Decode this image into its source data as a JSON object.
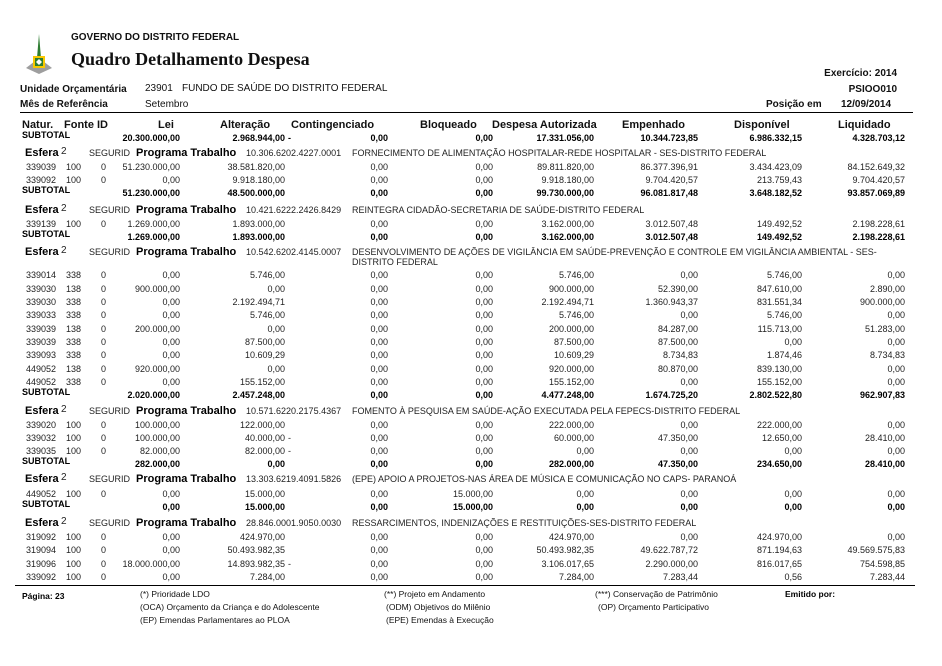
{
  "header": {
    "government": "GOVERNO DO DISTRITO FEDERAL",
    "title": "Quadro Detalhamento Despesa",
    "exercicio": "Exercício: 2014",
    "report_code": "PSIOO010",
    "unidade_label": "Unidade Orçamentária",
    "unidade_code": "23901",
    "unidade_name": "FUNDO DE SAÚDE DO DISTRITO FEDERAL",
    "mes_label": "Mês de Referência",
    "mes_value": "Setembro",
    "posicao_label": "Posição em",
    "posicao_value": "12/09/2014"
  },
  "columns": [
    "Natur.",
    "Fonte ID",
    "Lei",
    "Alteração",
    "Contingenciado",
    "Bloqueado",
    "Despesa Autorizada",
    "Empenhado",
    "Disponível",
    "Liquidado"
  ],
  "rows": [
    {
      "type": "subtotal",
      "label": "SUBTOTAL",
      "v": [
        "20.300.000,00",
        "2.968.944,00 -",
        "0,00",
        "0,00",
        "17.331.056,00",
        "10.344.723,85",
        "6.986.332,15",
        "4.328.703,12"
      ]
    },
    {
      "type": "esfera",
      "label": "Esfera",
      "esfera": "2",
      "seg": "SEGURID",
      "prog": "Programa Trabalho",
      "code": "10.306.6202.4227.0001",
      "desc": "FORNECIMENTO DE ALIMENTAÇÃO HOSPITALAR-REDE HOSPITALAR - SES-DISTRITO FEDERAL"
    },
    {
      "type": "data",
      "natur": "339039",
      "fonte": "100",
      "id": "0",
      "v": [
        "51.230.000,00",
        "38.581.820,00",
        "0,00",
        "0,00",
        "89.811.820,00",
        "86.377.396,91",
        "3.434.423,09",
        "84.152.649,32"
      ]
    },
    {
      "type": "data",
      "natur": "339092",
      "fonte": "100",
      "id": "0",
      "v": [
        "0,00",
        "9.918.180,00",
        "0,00",
        "0,00",
        "9.918.180,00",
        "9.704.420,57",
        "213.759,43",
        "9.704.420,57"
      ]
    },
    {
      "type": "subtotal",
      "label": "SUBTOTAL",
      "v": [
        "51.230.000,00",
        "48.500.000,00",
        "0,00",
        "0,00",
        "99.730.000,00",
        "96.081.817,48",
        "3.648.182,52",
        "93.857.069,89"
      ]
    },
    {
      "type": "esfera",
      "label": "Esfera",
      "esfera": "2",
      "seg": "SEGURID",
      "prog": "Programa Trabalho",
      "code": "10.421.6222.2426.8429",
      "desc": "REINTEGRA CIDADÃO-SECRETARIA DE SAÚDE-DISTRITO FEDERAL"
    },
    {
      "type": "data",
      "natur": "339139",
      "fonte": "100",
      "id": "0",
      "v": [
        "1.269.000,00",
        "1.893.000,00",
        "0,00",
        "0,00",
        "3.162.000,00",
        "3.012.507,48",
        "149.492,52",
        "2.198.228,61"
      ]
    },
    {
      "type": "subtotal",
      "label": "SUBTOTAL",
      "v": [
        "1.269.000,00",
        "1.893.000,00",
        "0,00",
        "0,00",
        "3.162.000,00",
        "3.012.507,48",
        "149.492,52",
        "2.198.228,61"
      ]
    },
    {
      "type": "esfera",
      "label": "Esfera",
      "esfera": "2",
      "seg": "SEGURID",
      "prog": "Programa Trabalho",
      "code": "10.542.6202.4145.0007",
      "desc": "DESENVOLVIMENTO DE AÇÕES DE VIGILÂNCIA EM SAÚDE-PREVENÇÃO E CONTROLE EM VIGILÂNCIA AMBIENTAL - SES-DISTRITO FEDERAL"
    },
    {
      "type": "data",
      "natur": "339014",
      "fonte": "338",
      "id": "0",
      "v": [
        "0,00",
        "5.746,00",
        "0,00",
        "0,00",
        "5.746,00",
        "0,00",
        "5.746,00",
        "0,00"
      ]
    },
    {
      "type": "data",
      "natur": "339030",
      "fonte": "138",
      "id": "0",
      "v": [
        "900.000,00",
        "0,00",
        "0,00",
        "0,00",
        "900.000,00",
        "52.390,00",
        "847.610,00",
        "2.890,00"
      ]
    },
    {
      "type": "data",
      "natur": "339030",
      "fonte": "338",
      "id": "0",
      "v": [
        "0,00",
        "2.192.494,71",
        "0,00",
        "0,00",
        "2.192.494,71",
        "1.360.943,37",
        "831.551,34",
        "900.000,00"
      ]
    },
    {
      "type": "data",
      "natur": "339033",
      "fonte": "338",
      "id": "0",
      "v": [
        "0,00",
        "5.746,00",
        "0,00",
        "0,00",
        "5.746,00",
        "0,00",
        "5.746,00",
        "0,00"
      ]
    },
    {
      "type": "data",
      "natur": "339039",
      "fonte": "138",
      "id": "0",
      "v": [
        "200.000,00",
        "0,00",
        "0,00",
        "0,00",
        "200.000,00",
        "84.287,00",
        "115.713,00",
        "51.283,00"
      ]
    },
    {
      "type": "data",
      "natur": "339039",
      "fonte": "338",
      "id": "0",
      "v": [
        "0,00",
        "87.500,00",
        "0,00",
        "0,00",
        "87.500,00",
        "87.500,00",
        "0,00",
        "0,00"
      ]
    },
    {
      "type": "data",
      "natur": "339093",
      "fonte": "338",
      "id": "0",
      "v": [
        "0,00",
        "10.609,29",
        "0,00",
        "0,00",
        "10.609,29",
        "8.734,83",
        "1.874,46",
        "8.734,83"
      ]
    },
    {
      "type": "data",
      "natur": "449052",
      "fonte": "138",
      "id": "0",
      "v": [
        "920.000,00",
        "0,00",
        "0,00",
        "0,00",
        "920.000,00",
        "80.870,00",
        "839.130,00",
        "0,00"
      ]
    },
    {
      "type": "data",
      "natur": "449052",
      "fonte": "338",
      "id": "0",
      "v": [
        "0,00",
        "155.152,00",
        "0,00",
        "0,00",
        "155.152,00",
        "0,00",
        "155.152,00",
        "0,00"
      ]
    },
    {
      "type": "subtotal",
      "label": "SUBTOTAL",
      "v": [
        "2.020.000,00",
        "2.457.248,00",
        "0,00",
        "0,00",
        "4.477.248,00",
        "1.674.725,20",
        "2.802.522,80",
        "962.907,83"
      ]
    },
    {
      "type": "esfera",
      "label": "Esfera",
      "esfera": "2",
      "seg": "SEGURID",
      "prog": "Programa Trabalho",
      "code": "10.571.6220.2175.4367",
      "desc": "FOMENTO À PESQUISA EM SAÚDE-AÇÃO EXECUTADA PELA FEPECS-DISTRITO FEDERAL"
    },
    {
      "type": "data",
      "natur": "339020",
      "fonte": "100",
      "id": "0",
      "v": [
        "100.000,00",
        "122.000,00",
        "0,00",
        "0,00",
        "222.000,00",
        "0,00",
        "222.000,00",
        "0,00"
      ]
    },
    {
      "type": "data",
      "natur": "339032",
      "fonte": "100",
      "id": "0",
      "v": [
        "100.000,00",
        "40.000,00 -",
        "0,00",
        "0,00",
        "60.000,00",
        "47.350,00",
        "12.650,00",
        "28.410,00"
      ]
    },
    {
      "type": "data",
      "natur": "339035",
      "fonte": "100",
      "id": "0",
      "v": [
        "82.000,00",
        "82.000,00 -",
        "0,00",
        "0,00",
        "0,00",
        "0,00",
        "0,00",
        "0,00"
      ]
    },
    {
      "type": "subtotal",
      "label": "SUBTOTAL",
      "v": [
        "282.000,00",
        "0,00",
        "0,00",
        "0,00",
        "282.000,00",
        "47.350,00",
        "234.650,00",
        "28.410,00"
      ]
    },
    {
      "type": "esfera",
      "label": "Esfera",
      "esfera": "2",
      "seg": "SEGURID",
      "prog": "Programa Trabalho",
      "code": "13.303.6219.4091.5826",
      "desc": "(EPE) APOIO A PROJETOS-NAS ÁREA DE MÚSICA E COMUNICAÇÃO NO CAPS- PARANOÁ"
    },
    {
      "type": "data",
      "natur": "449052",
      "fonte": "100",
      "id": "0",
      "v": [
        "0,00",
        "15.000,00",
        "0,00",
        "15.000,00",
        "0,00",
        "0,00",
        "0,00",
        "0,00"
      ]
    },
    {
      "type": "subtotal",
      "label": "SUBTOTAL",
      "v": [
        "0,00",
        "15.000,00",
        "0,00",
        "15.000,00",
        "0,00",
        "0,00",
        "0,00",
        "0,00"
      ]
    },
    {
      "type": "esfera",
      "label": "Esfera",
      "esfera": "2",
      "seg": "SEGURID",
      "prog": "Programa Trabalho",
      "code": "28.846.0001.9050.0030",
      "desc": "RESSARCIMENTOS, INDENIZAÇÕES E RESTITUIÇÕES-SES-DISTRITO FEDERAL"
    },
    {
      "type": "data",
      "natur": "319092",
      "fonte": "100",
      "id": "0",
      "v": [
        "0,00",
        "424.970,00",
        "0,00",
        "0,00",
        "424.970,00",
        "0,00",
        "424.970,00",
        "0,00"
      ]
    },
    {
      "type": "data",
      "natur": "319094",
      "fonte": "100",
      "id": "0",
      "v": [
        "0,00",
        "50.493.982,35",
        "0,00",
        "0,00",
        "50.493.982,35",
        "49.622.787,72",
        "871.194,63",
        "49.569.575,83"
      ]
    },
    {
      "type": "data",
      "natur": "319096",
      "fonte": "100",
      "id": "0",
      "v": [
        "18.000.000,00",
        "14.893.982,35 -",
        "0,00",
        "0,00",
        "3.106.017,65",
        "2.290.000,00",
        "816.017,65",
        "754.598,85"
      ]
    },
    {
      "type": "data",
      "natur": "339092",
      "fonte": "100",
      "id": "0",
      "v": [
        "0,00",
        "7.284,00",
        "0,00",
        "0,00",
        "7.284,00",
        "7.283,44",
        "0,56",
        "7.283,44"
      ]
    }
  ],
  "footer": {
    "page": "Página: 23",
    "emitido": "Emitido por:",
    "notes": [
      "(*) Prioridade LDO",
      "(**) Projeto em Andamento",
      "(***) Conservação de Patrimônio",
      "(OCA)  Orçamento da Criança e do Adolescente",
      "(ODM) Objetivos do Milênio",
      "(OP) Orçamento Participativo",
      "(EP)  Emendas Parlamentares ao PLOA",
      "(EPE) Emendas à Execução"
    ]
  }
}
